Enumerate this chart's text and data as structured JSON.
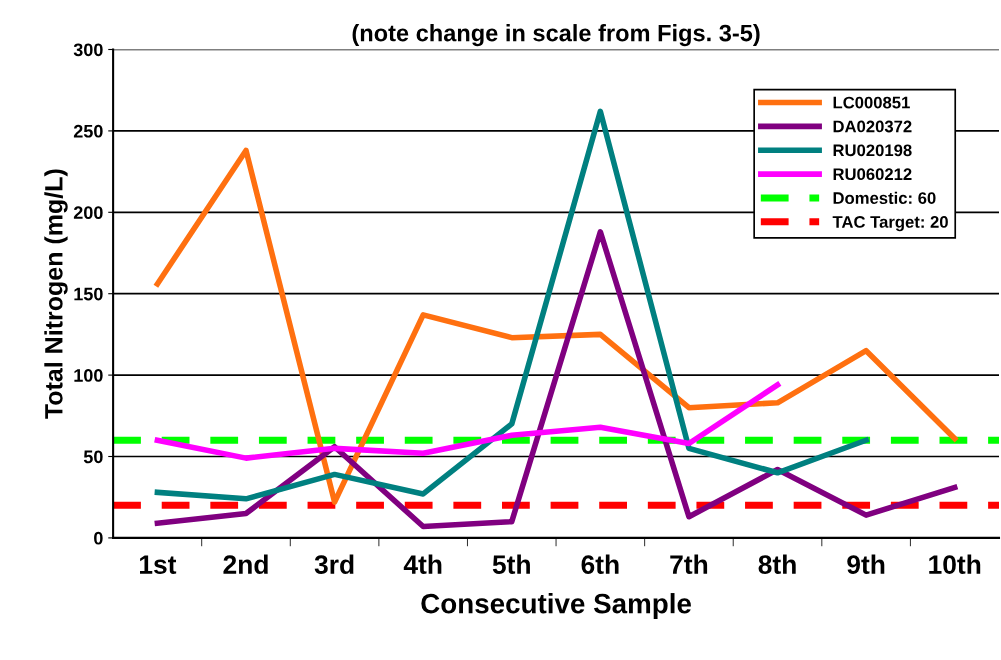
{
  "chart_data": {
    "type": "line",
    "title": "(note change in scale from Figs. 3-5)",
    "xlabel": "Consecutive Sample",
    "ylabel": "Total Nitrogen (mg/L)",
    "categories": [
      "1st",
      "2nd",
      "3rd",
      "4th",
      "5th",
      "6th",
      "7th",
      "8th",
      "9th",
      "10th"
    ],
    "series": [
      {
        "name": "LC000851",
        "color": "#ff7010",
        "values": [
          156,
          238,
          22,
          137,
          123,
          125,
          80,
          83,
          115,
          61
        ]
      },
      {
        "name": "DA020372",
        "color": "#800080",
        "values": [
          9,
          15,
          56,
          7,
          10,
          188,
          13,
          42,
          14,
          31
        ]
      },
      {
        "name": "RU020198",
        "color": "#008080",
        "values": [
          28,
          24,
          39,
          27,
          70,
          262,
          55,
          40,
          60,
          null
        ]
      },
      {
        "name": "RU060212",
        "color": "#ff00ff",
        "values": [
          60,
          49,
          55,
          52,
          63,
          68,
          58,
          94,
          null,
          null
        ]
      }
    ],
    "ref_lines": [
      {
        "axis": "y",
        "value": 60,
        "label": "Domestic: 60",
        "color": "#00ff00",
        "line_style": "dashed"
      },
      {
        "axis": "y",
        "value": 20,
        "label": "TAC Target: 20",
        "color": "#ff0000",
        "line_style": "dashed"
      }
    ],
    "ylim": [
      0,
      300
    ],
    "yticks": [
      0,
      50,
      100,
      150,
      200,
      250,
      300
    ],
    "grid": "y",
    "legend": "top right",
    "marker": "none",
    "line_style": "solid"
  }
}
